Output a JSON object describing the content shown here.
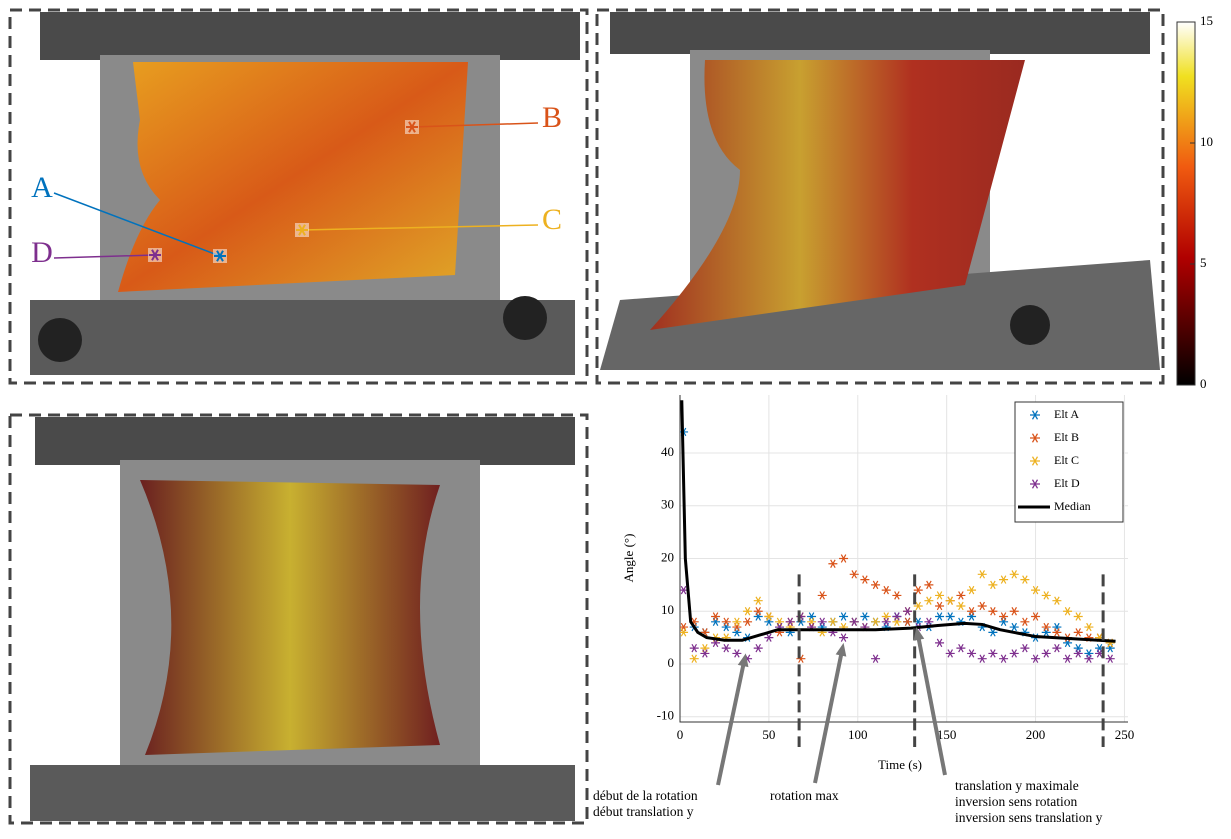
{
  "labels": [
    "A",
    "B",
    "C",
    "D"
  ],
  "colorbar": {
    "ylim": [
      0,
      15
    ],
    "yticks": [
      0,
      5,
      10,
      15
    ]
  },
  "chart_data": {
    "type": "scatter",
    "x_label": "Time (s)",
    "y_label": "Angle (°)",
    "xlim": [
      0,
      252
    ],
    "ylim": [
      -11,
      51
    ],
    "xticks": [
      0,
      50,
      100,
      150,
      200,
      250
    ],
    "yticks": [
      -10,
      0,
      10,
      20,
      30,
      40
    ],
    "grid": true,
    "legend": "top-right",
    "x": [
      2,
      8,
      14,
      20,
      26,
      32,
      38,
      44,
      50,
      56,
      62,
      68,
      74,
      80,
      86,
      92,
      98,
      104,
      110,
      116,
      122,
      128,
      134,
      140,
      146,
      152,
      158,
      164,
      170,
      176,
      182,
      188,
      194,
      200,
      206,
      212,
      218,
      224,
      230,
      236,
      242
    ],
    "series": [
      {
        "name": "Elt A",
        "color": "#0072bd",
        "values": [
          44,
          7,
          6,
          8,
          7,
          6,
          5,
          9,
          8,
          7,
          6,
          8,
          9,
          7,
          8,
          9,
          8,
          9,
          8,
          7,
          9,
          8,
          8,
          7,
          9,
          9,
          8,
          9,
          7,
          6,
          8,
          7,
          6,
          5,
          6,
          7,
          4,
          3,
          2,
          3,
          3
        ]
      },
      {
        "name": "Elt B",
        "color": "#d95319",
        "values": [
          7,
          8,
          6,
          9,
          8,
          7,
          8,
          10,
          9,
          6,
          8,
          1,
          7,
          13,
          19,
          20,
          17,
          16,
          15,
          14,
          13,
          8,
          14,
          15,
          11,
          12,
          13,
          10,
          11,
          10,
          9,
          10,
          8,
          9,
          7,
          6,
          5,
          6,
          5,
          5,
          4
        ]
      },
      {
        "name": "Elt C",
        "color": "#edb120",
        "values": [
          6,
          1,
          3,
          5,
          5,
          8,
          10,
          12,
          9,
          8,
          7,
          9,
          8,
          6,
          8,
          7,
          8,
          7,
          8,
          9,
          8,
          10,
          11,
          12,
          13,
          12,
          11,
          14,
          17,
          15,
          16,
          17,
          16,
          14,
          13,
          12,
          10,
          9,
          7,
          5,
          4
        ]
      },
      {
        "name": "Elt D",
        "color": "#7e2f8e",
        "values": [
          14,
          3,
          2,
          4,
          3,
          2,
          1,
          3,
          5,
          7,
          8,
          9,
          7,
          8,
          6,
          5,
          8,
          7,
          1,
          8,
          9,
          10,
          7,
          8,
          4,
          2,
          3,
          2,
          1,
          2,
          1,
          2,
          3,
          1,
          2,
          3,
          1,
          2,
          1,
          2,
          1
        ]
      }
    ],
    "median": {
      "name": "Median",
      "color": "#000000",
      "x": [
        1,
        3,
        6,
        10,
        15,
        25,
        35,
        45,
        55,
        70,
        90,
        110,
        130,
        145,
        160,
        170,
        180,
        200,
        220,
        245
      ],
      "values": [
        50,
        20,
        8,
        6,
        5,
        4.5,
        4.5,
        5.5,
        6.5,
        6.5,
        6.5,
        6.5,
        6.8,
        7.3,
        7.7,
        7.5,
        6.5,
        5.2,
        4.8,
        4.3
      ]
    },
    "vlines": {
      "x": [
        67,
        132,
        238
      ],
      "top": 17
    },
    "annotations": [
      {
        "lines": [
          "début de la rotation",
          "début translation y"
        ],
        "x": 37,
        "y": 2
      },
      {
        "lines": [
          "rotation max"
        ],
        "x": 92,
        "y": 4
      },
      {
        "lines": [
          "translation y maximale",
          "inversion sens rotation",
          "inversion sens translation y"
        ],
        "x": 133,
        "y": 7
      }
    ]
  }
}
